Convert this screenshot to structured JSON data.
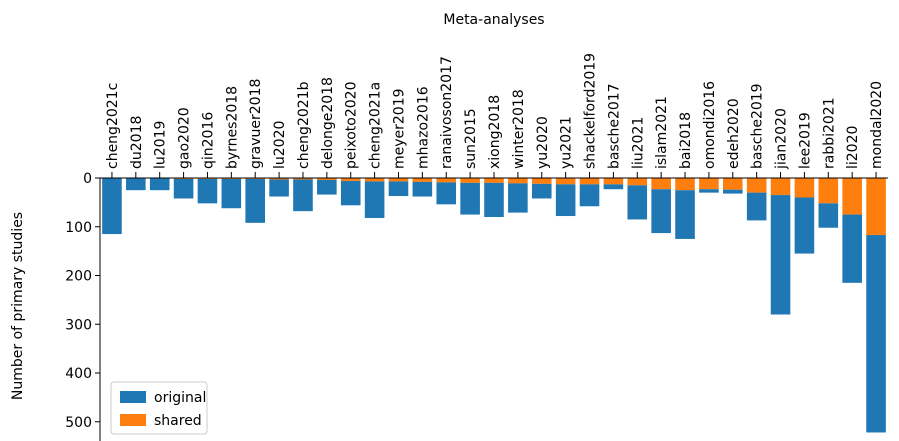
{
  "chart_data": {
    "type": "bar",
    "stacked": true,
    "orientation": "downward",
    "title": "",
    "xlabel": "Meta-analyses",
    "xlabel_position": "top",
    "ylabel": "Number of primary studies",
    "ylim": [
      0,
      530
    ],
    "y_inverted": true,
    "yticks": [
      0,
      100,
      200,
      300,
      400,
      500
    ],
    "grid": false,
    "legend": {
      "placement": "bottom-left"
    },
    "categories": [
      "cheng2021c",
      "du2018",
      "lu2019",
      "gao2020",
      "qin2016",
      "byrnes2018",
      "gravuer2018",
      "lu2020",
      "cheng2021b",
      "delonge2018",
      "peixoto2020",
      "cheng2021a",
      "meyer2019",
      "mhazo2016",
      "ranaivoson2017",
      "sun2015",
      "xiong2018",
      "winter2018",
      "yu2020",
      "yu2021",
      "shackelford2019",
      "basche2017",
      "liu2021",
      "islam2021",
      "bai2018",
      "omondi2016",
      "edeh2020",
      "basche2019",
      "jian2020",
      "lee2019",
      "rabbi2021",
      "li2020",
      "mondal2020"
    ],
    "series": [
      {
        "name": "original",
        "color": "#1f77b4",
        "values": [
          115,
          25,
          25,
          40,
          50,
          60,
          90,
          35,
          65,
          30,
          50,
          75,
          30,
          30,
          45,
          65,
          70,
          60,
          30,
          65,
          45,
          10,
          70,
          90,
          100,
          7,
          8,
          57,
          245,
          115,
          50,
          140,
          405
        ]
      },
      {
        "name": "shared",
        "color": "#ff7f0e",
        "values": [
          0,
          0,
          0,
          2,
          2,
          2,
          2,
          3,
          3,
          4,
          6,
          7,
          7,
          8,
          9,
          10,
          10,
          11,
          12,
          13,
          13,
          13,
          15,
          23,
          25,
          23,
          24,
          30,
          35,
          40,
          52,
          75,
          117
        ]
      }
    ]
  }
}
